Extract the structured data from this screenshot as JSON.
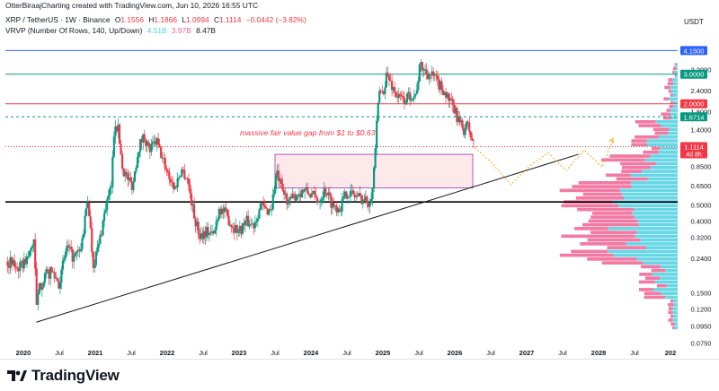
{
  "header": {
    "author_line": "OtterBiraajCharting created with TradingView.com, Jun 10, 2026 16:55 UTC",
    "symbol_line": "XRP / TetherUS · 1W · Binance",
    "ohlc": {
      "o_label": "O",
      "o": "1.1556",
      "h_label": "H",
      "h": "1.1866",
      "l_label": "L",
      "l": "1.0994",
      "c_label": "C",
      "c": "1.1114",
      "change": "−0.0442 (−3.82%)"
    },
    "vrvp_line": "VRVP (Number Of Rows, 140, Up/Down)",
    "vrvp_vals": {
      "up": "4.51B",
      "down": "3.97B",
      "total": "8.47B"
    }
  },
  "axis": {
    "currency": "USDT",
    "price_ticks": [
      "3.2000",
      "2.4000",
      "1.8000",
      "1.4000",
      "0.8500",
      "0.6500",
      "0.5000",
      "0.4000",
      "0.3200",
      "0.2400",
      "0.1500",
      "0.1200",
      "0.0950",
      "0.0750"
    ],
    "price_tick_values": [
      3.2,
      2.4,
      1.8,
      1.4,
      0.85,
      0.65,
      0.5,
      0.4,
      0.32,
      0.24,
      0.15,
      0.12,
      0.095,
      0.075
    ],
    "time_ticks": [
      "2020",
      "Jul",
      "2021",
      "Jul",
      "2022",
      "Jul",
      "2023",
      "Jul",
      "2024",
      "Jul",
      "2025",
      "Jul",
      "2026",
      "Jul",
      "2027",
      "Jul",
      "2028",
      "Jul",
      "202"
    ],
    "time_tick_values": [
      2020.0,
      2020.5,
      2021.0,
      2021.5,
      2022.0,
      2022.5,
      2023.0,
      2023.5,
      2024.0,
      2024.5,
      2025.0,
      2025.5,
      2026.0,
      2026.5,
      2027.0,
      2027.5,
      2028.0,
      2028.5,
      2029.0
    ],
    "time_tick_bold": [
      true,
      false,
      true,
      false,
      true,
      false,
      true,
      false,
      true,
      false,
      true,
      false,
      true,
      false,
      true,
      false,
      true,
      false,
      true
    ]
  },
  "price_labels": [
    {
      "text": "4.1500",
      "value": 4.15,
      "color": "#2962ff"
    },
    {
      "text": "3.0000",
      "value": 3.0,
      "color": "#089981"
    },
    {
      "text": "2.0000",
      "value": 2.0,
      "color": "#f23645"
    },
    {
      "text": "1.6714",
      "value": 1.6714,
      "color": "#089981"
    },
    {
      "text": "1.1114",
      "value": 1.1114,
      "color": "#f23645",
      "sub": "4d 8h"
    }
  ],
  "annotation": {
    "text": "massive fair value gap from $1 to $0.63",
    "color": "#f23645"
  },
  "footer": {
    "logo_text": "TradingView"
  },
  "colors": {
    "up": "#089981",
    "down": "#f23645",
    "line_blue": "#2962ff",
    "line_green": "#089981",
    "line_red": "#f23645",
    "fvg_fill": "#fde7e9",
    "fvg_border": "#9c27b0",
    "projection": "#f7a600",
    "vp_up": "#4dd0e1",
    "vp_down": "#f06292"
  },
  "chart_data": {
    "type": "candlestick",
    "symbol": "XRP / TetherUS",
    "timeframe": "1W",
    "scale": "log",
    "ylim": [
      0.072,
      5.2
    ],
    "xlim": [
      2019.75,
      2029.1
    ],
    "horizontal_lines": [
      {
        "price": 4.15,
        "color": "#2962ff",
        "style": "solid"
      },
      {
        "price": 3.0,
        "color": "#089981",
        "style": "solid"
      },
      {
        "price": 2.0,
        "color": "#f23645",
        "style": "solid"
      },
      {
        "price": 1.6714,
        "color": "#089981",
        "style": "dashed"
      },
      {
        "price": 1.1114,
        "color": "#f23645",
        "style": "dotted"
      },
      {
        "price": 0.52,
        "color": "#000000",
        "style": "solid"
      }
    ],
    "trendline": {
      "from": {
        "x": 2020.18,
        "price": 0.1
      },
      "to": {
        "x": 2027.72,
        "price": 1.0
      }
    },
    "fvg_zone": {
      "x_from": 2023.5,
      "x_to": 2026.25,
      "price_top": 1.0,
      "price_bottom": 0.63
    },
    "projection_path": [
      [
        2026.28,
        1.1
      ],
      [
        2026.5,
        0.9
      ],
      [
        2026.78,
        0.66
      ],
      [
        2027.05,
        0.86
      ],
      [
        2027.3,
        1.02
      ],
      [
        2027.55,
        0.8
      ],
      [
        2027.8,
        1.06
      ],
      [
        2028.05,
        0.84
      ],
      [
        2028.2,
        1.22
      ]
    ],
    "projection_target": 1.24,
    "price_path": [
      [
        2019.78,
        0.23
      ],
      [
        2019.95,
        0.21
      ],
      [
        2020.08,
        0.25
      ],
      [
        2020.15,
        0.32
      ],
      [
        2020.18,
        0.12
      ],
      [
        2020.22,
        0.16
      ],
      [
        2020.3,
        0.19
      ],
      [
        2020.4,
        0.2
      ],
      [
        2020.5,
        0.17
      ],
      [
        2020.6,
        0.28
      ],
      [
        2020.7,
        0.24
      ],
      [
        2020.8,
        0.27
      ],
      [
        2020.9,
        0.55
      ],
      [
        2020.97,
        0.22
      ],
      [
        2021.05,
        0.29
      ],
      [
        2021.15,
        0.5
      ],
      [
        2021.22,
        0.62
      ],
      [
        2021.27,
        1.6
      ],
      [
        2021.32,
        1.4
      ],
      [
        2021.38,
        0.82
      ],
      [
        2021.45,
        0.72
      ],
      [
        2021.52,
        0.65
      ],
      [
        2021.6,
        1.1
      ],
      [
        2021.68,
        1.3
      ],
      [
        2021.75,
        1.05
      ],
      [
        2021.85,
        1.2
      ],
      [
        2021.93,
        0.95
      ],
      [
        2022.0,
        0.8
      ],
      [
        2022.1,
        0.62
      ],
      [
        2022.2,
        0.82
      ],
      [
        2022.28,
        0.72
      ],
      [
        2022.38,
        0.42
      ],
      [
        2022.45,
        0.33
      ],
      [
        2022.55,
        0.35
      ],
      [
        2022.65,
        0.33
      ],
      [
        2022.72,
        0.48
      ],
      [
        2022.8,
        0.45
      ],
      [
        2022.9,
        0.38
      ],
      [
        2023.0,
        0.35
      ],
      [
        2023.1,
        0.4
      ],
      [
        2023.2,
        0.38
      ],
      [
        2023.3,
        0.5
      ],
      [
        2023.38,
        0.46
      ],
      [
        2023.45,
        0.48
      ],
      [
        2023.52,
        0.78
      ],
      [
        2023.6,
        0.6
      ],
      [
        2023.7,
        0.52
      ],
      [
        2023.8,
        0.58
      ],
      [
        2023.9,
        0.61
      ],
      [
        2024.0,
        0.58
      ],
      [
        2024.1,
        0.53
      ],
      [
        2024.2,
        0.62
      ],
      [
        2024.3,
        0.5
      ],
      [
        2024.4,
        0.48
      ],
      [
        2024.5,
        0.6
      ],
      [
        2024.6,
        0.57
      ],
      [
        2024.7,
        0.55
      ],
      [
        2024.8,
        0.52
      ],
      [
        2024.86,
        0.63
      ],
      [
        2024.9,
        1.2
      ],
      [
        2024.95,
        2.4
      ],
      [
        2025.0,
        2.3
      ],
      [
        2025.05,
        3.0
      ],
      [
        2025.12,
        2.6
      ],
      [
        2025.2,
        2.2
      ],
      [
        2025.3,
        2.1
      ],
      [
        2025.4,
        2.3
      ],
      [
        2025.45,
        2.2
      ],
      [
        2025.52,
        3.4
      ],
      [
        2025.6,
        3.1
      ],
      [
        2025.7,
        2.9
      ],
      [
        2025.78,
        2.6
      ],
      [
        2025.85,
        2.4
      ],
      [
        2025.92,
        2.1
      ],
      [
        2026.0,
        1.8
      ],
      [
        2026.08,
        1.5
      ],
      [
        2026.12,
        1.4
      ],
      [
        2026.18,
        1.5
      ],
      [
        2026.22,
        1.3
      ],
      [
        2026.27,
        1.11
      ]
    ],
    "volume_profile": {
      "type": "horizontal_histogram",
      "series": [
        {
          "name": "up",
          "color": "#4dd0e1"
        },
        {
          "name": "down",
          "color": "#f06292"
        }
      ],
      "price_range": [
        0.09,
        3.5
      ]
    }
  }
}
